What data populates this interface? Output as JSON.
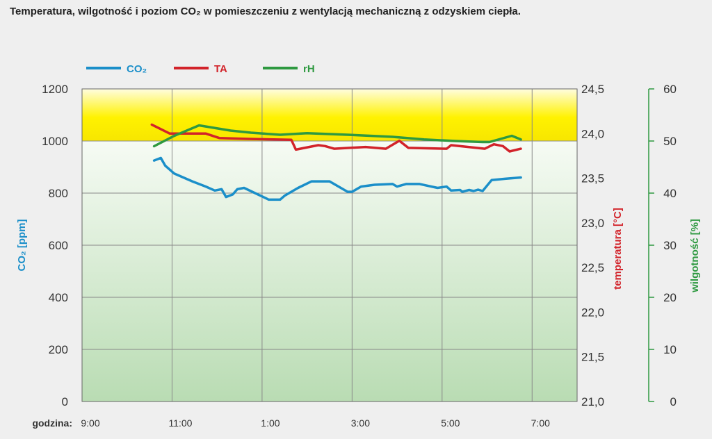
{
  "title": "Temperatura, wilgotność i poziom CO₂ w pomieszczeniu z wentylacją mechaniczną z odzyskiem ciepła.",
  "colors": {
    "co2": "#1b8fc9",
    "ta": "#d2232a",
    "rh": "#2e9940",
    "grid": "#888888",
    "band_yellow": "#fff000",
    "band_green": "#c6e2c2"
  },
  "chart_data": {
    "type": "line",
    "title": "Temperatura, wilgotność i poziom CO₂ w pomieszczeniu z wentylacją mechaniczną z odzyskiem ciepła.",
    "xlabel": "godzina:",
    "x_ticks": [
      "9:00",
      "11:00",
      "1:00",
      "3:00",
      "5:00",
      "7:00"
    ],
    "x_unit": "hours since 9:00",
    "xlim": [
      0,
      11
    ],
    "grid": true,
    "legend_position": "top-left",
    "axes": {
      "left": {
        "label": "CO₂ [ppm]",
        "ylim": [
          0,
          1200
        ],
        "ticks": [
          "0",
          "200",
          "400",
          "600",
          "800",
          "1000",
          "1200"
        ]
      },
      "right1": {
        "label": "temperatura [°C]",
        "ylim": [
          21.0,
          24.5
        ],
        "ticks": [
          "21,0",
          "21,5",
          "22,0",
          "22,5",
          "23,0",
          "23,5",
          "24,0",
          "24,5"
        ]
      },
      "right2": {
        "label": "wilgotność [%]",
        "ylim": [
          0,
          60
        ],
        "ticks": [
          "0",
          "10",
          "20",
          "30",
          "40",
          "50",
          "60"
        ]
      }
    },
    "bands": [
      {
        "axis": "left",
        "from": 1000,
        "to": 1200,
        "color": "yellow"
      },
      {
        "axis": "left",
        "from": 0,
        "to": 1000,
        "color": "green"
      }
    ],
    "series": [
      {
        "name": "CO₂",
        "axis": "left",
        "x": [
          1.6,
          1.75,
          1.85,
          2.05,
          2.45,
          2.75,
          2.95,
          3.1,
          3.2,
          3.35,
          3.45,
          3.6,
          4.15,
          4.4,
          4.5,
          4.8,
          5.1,
          5.5,
          5.9,
          6.0,
          6.2,
          6.5,
          6.9,
          7.0,
          7.2,
          7.5,
          7.9,
          8.1,
          8.2,
          8.4,
          8.45,
          8.6,
          8.7,
          8.8,
          8.9,
          9.1,
          9.4,
          9.75
        ],
        "y": [
          925,
          935,
          905,
          875,
          845,
          825,
          810,
          815,
          785,
          795,
          815,
          820,
          775,
          775,
          790,
          820,
          845,
          845,
          805,
          805,
          825,
          832,
          835,
          825,
          835,
          835,
          820,
          825,
          810,
          812,
          805,
          812,
          808,
          813,
          808,
          850,
          855,
          860
        ]
      },
      {
        "name": "TA",
        "axis": "right1",
        "x": [
          1.55,
          1.95,
          2.3,
          2.75,
          3.05,
          3.7,
          4.65,
          4.75,
          5.25,
          5.4,
          5.6,
          6.3,
          6.75,
          7.05,
          7.25,
          8.1,
          8.2,
          8.95,
          9.15,
          9.35,
          9.5,
          9.75
        ],
        "y": [
          24.1,
          24.0,
          24.0,
          24.0,
          23.95,
          23.94,
          23.93,
          23.82,
          23.87,
          23.86,
          23.83,
          23.85,
          23.83,
          23.92,
          23.84,
          23.83,
          23.87,
          23.83,
          23.88,
          23.86,
          23.8,
          23.83
        ]
      },
      {
        "name": "rH",
        "axis": "right2",
        "x": [
          1.6,
          2.05,
          2.6,
          3.3,
          3.75,
          4.4,
          5.0,
          5.9,
          6.9,
          7.6,
          8.3,
          8.9,
          9.05,
          9.55,
          9.75
        ],
        "y": [
          49,
          51,
          53,
          52,
          51.6,
          51.2,
          51.5,
          51.2,
          50.8,
          50.3,
          50,
          49.8,
          49.8,
          51,
          50.3
        ]
      }
    ]
  }
}
